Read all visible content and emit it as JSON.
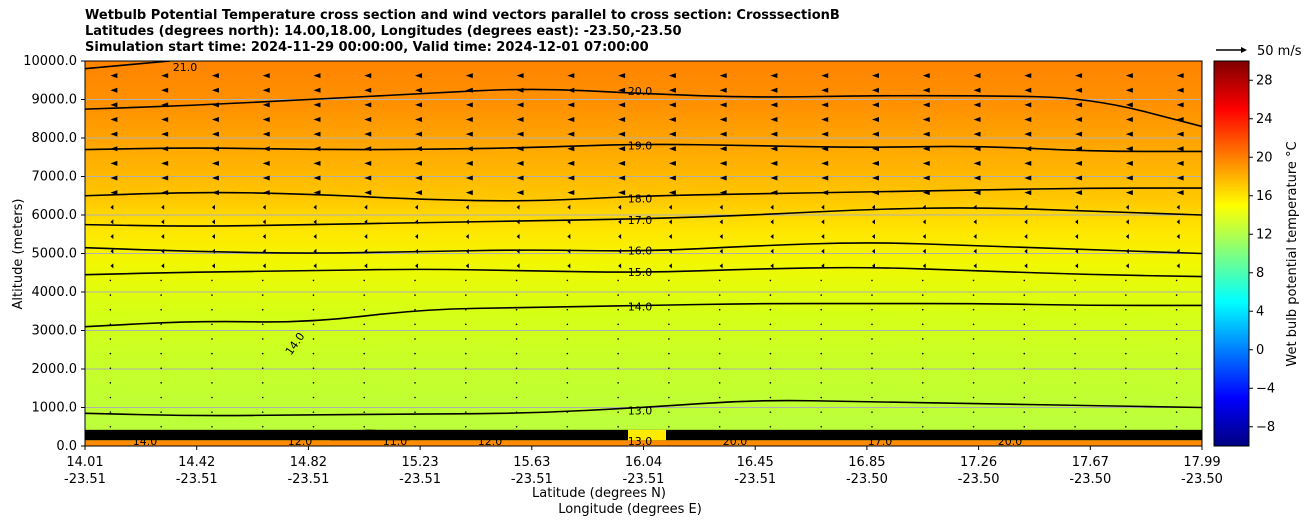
{
  "title_lines": [
    "Wetbulb Potential Temperature cross section and wind vectors parallel to cross section: CrosssectionB",
    "Latitudes (degrees north): 14.00,18.00, Longitudes (degrees east): -23.50,-23.50",
    "Simulation start time: 2024-11-29 00:00:00, Valid time: 2024-12-01 07:00:00"
  ],
  "colors": {
    "contour_line": "#000000",
    "gridline": "#b0b0b0",
    "colormap": [
      "#00007f",
      "#0000ff",
      "#007fff",
      "#00ffff",
      "#7fff7f",
      "#ffff00",
      "#ff7f00",
      "#ff0000",
      "#7f0000"
    ]
  },
  "chart_data": {
    "type": "heatmap",
    "title": "Wetbulb Potential Temperature cross section and wind vectors parallel to cross section: CrosssectionB",
    "ylabel": "Altitude (meters)",
    "xlabel_lat": "Latitude (degrees N)",
    "xlabel_lon": "Longitude (degrees E)",
    "ylim": [
      0,
      10000
    ],
    "xlim": [
      14.01,
      17.99
    ],
    "y_ticks": [
      "0.0",
      "1000.0",
      "2000.0",
      "3000.0",
      "4000.0",
      "5000.0",
      "6000.0",
      "7000.0",
      "8000.0",
      "9000.0",
      "10000.0"
    ],
    "x_ticks": [
      {
        "lat": "14.01",
        "lon": "-23.51"
      },
      {
        "lat": "14.42",
        "lon": "-23.51"
      },
      {
        "lat": "14.82",
        "lon": "-23.51"
      },
      {
        "lat": "15.23",
        "lon": "-23.51"
      },
      {
        "lat": "15.63",
        "lon": "-23.51"
      },
      {
        "lat": "16.04",
        "lon": "-23.51"
      },
      {
        "lat": "16.45",
        "lon": "-23.51"
      },
      {
        "lat": "16.85",
        "lon": "-23.50"
      },
      {
        "lat": "17.26",
        "lon": "-23.50"
      },
      {
        "lat": "17.67",
        "lon": "-23.50"
      },
      {
        "lat": "17.99",
        "lon": "-23.50"
      }
    ],
    "grid": true,
    "colorbar": {
      "label": "Wet bulb potential temperature $^\\circ$C",
      "range": [
        -10,
        30
      ],
      "ticks": [
        "−8",
        "−4",
        "0",
        "4",
        "8",
        "12",
        "16",
        "20",
        "24",
        "28"
      ]
    },
    "quiver_key": {
      "label": "50 m/s"
    },
    "contours": [
      {
        "level": "13.0",
        "label": "13.0",
        "y": [
          850,
          780,
          810,
          830,
          850,
          1000,
          1200,
          1150,
          1100,
          1050,
          1000
        ]
      },
      {
        "level": "14.0",
        "label": "14.0",
        "y": [
          3100,
          3250,
          3200,
          3550,
          3600,
          3650,
          3700,
          3700,
          3700,
          3650,
          3650
        ]
      },
      {
        "level": "15.0",
        "label": "15.0",
        "y": [
          4450,
          4520,
          4550,
          4600,
          4550,
          4500,
          4600,
          4650,
          4550,
          4450,
          4400
        ]
      },
      {
        "level": "16.0",
        "label": "16.0",
        "y": [
          5150,
          5050,
          5000,
          5050,
          5100,
          5050,
          5200,
          5300,
          5200,
          5100,
          5000
        ]
      },
      {
        "level": "17.0",
        "label": "17.0",
        "y": [
          5750,
          5700,
          5750,
          5800,
          5850,
          5900,
          6000,
          6150,
          6200,
          6100,
          6000
        ]
      },
      {
        "level": "18.0",
        "label": "18.0",
        "y": [
          6500,
          6600,
          6550,
          6400,
          6350,
          6500,
          6550,
          6600,
          6650,
          6700,
          6700
        ]
      },
      {
        "level": "19.0",
        "label": "19.0",
        "y": [
          7700,
          7750,
          7700,
          7700,
          7750,
          7850,
          7800,
          7750,
          7800,
          7650,
          7650
        ]
      },
      {
        "level": "20.0",
        "label": "20.0",
        "y": [
          8750,
          8850,
          9000,
          9150,
          9300,
          9150,
          9050,
          9100,
          9100,
          9050,
          8300
        ]
      },
      {
        "level": "21.0",
        "label": "21.0",
        "y": [
          9800,
          10000
        ]
      }
    ],
    "low_level_contour_labels": [
      "14.0",
      "12.0",
      "11.0",
      "12.0",
      "13.0",
      "20.0",
      "17.0",
      "20.0"
    ]
  }
}
